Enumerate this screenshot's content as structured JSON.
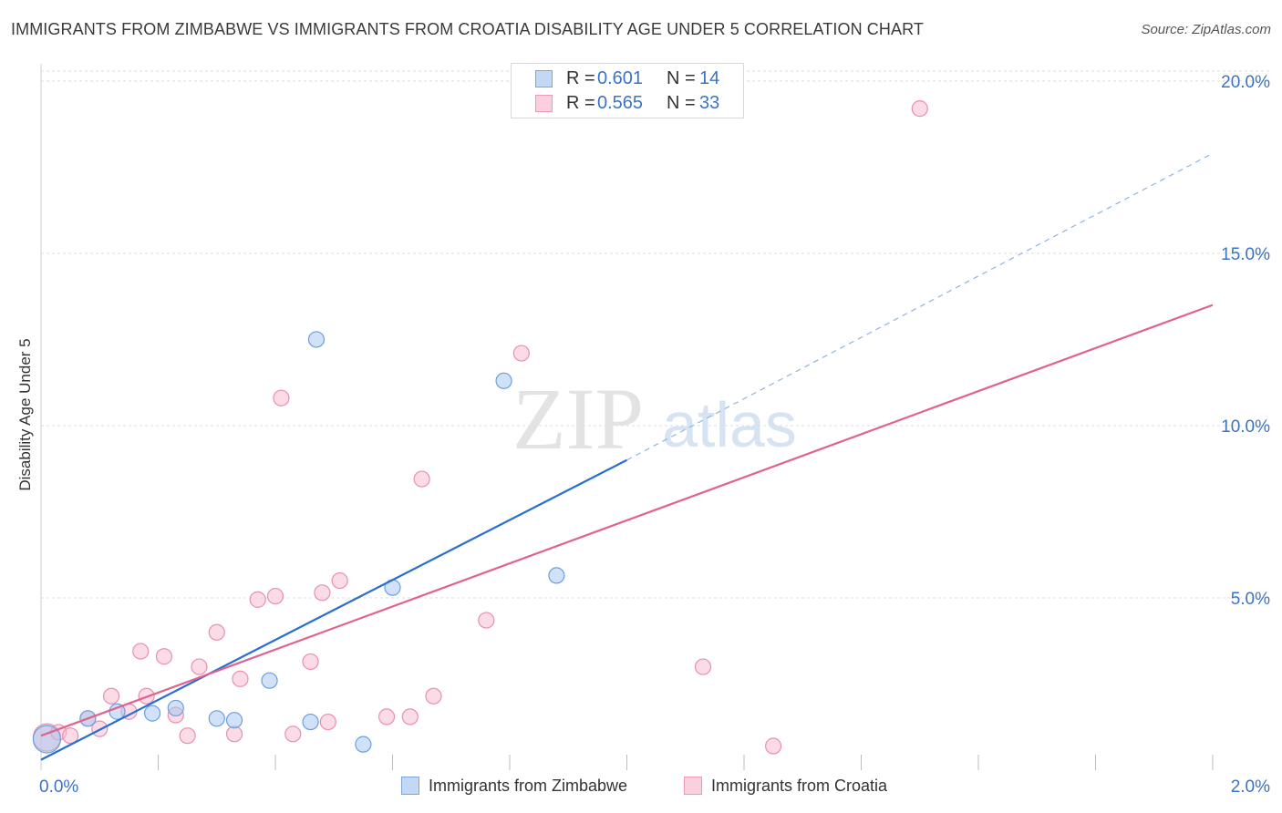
{
  "title": "IMMIGRANTS FROM ZIMBABWE VS IMMIGRANTS FROM CROATIA DISABILITY AGE UNDER 5 CORRELATION CHART",
  "source": "Source: ZipAtlas.com",
  "watermark": {
    "zip": "ZIP",
    "atlas": "atlas"
  },
  "legend": {
    "rows": [
      {
        "r_label": "R =",
        "r_value": "0.601",
        "n_label": "N =",
        "n_value": "14"
      },
      {
        "r_label": "R =",
        "r_value": "0.565",
        "n_label": "N =",
        "n_value": "33"
      }
    ]
  },
  "colors": {
    "zimbabwe_fill": "#a9c8f2",
    "zimbabwe_stroke": "#6c9fdc",
    "zimbabwe_line": "#2a6fcf",
    "croatia_fill": "#f7bdd0",
    "croatia_stroke": "#ea8fae",
    "croatia_line": "#e0628f",
    "tick_label": "#3b73c7",
    "grid": "#dedede"
  },
  "chart_data": {
    "type": "scatter",
    "title": "IMMIGRANTS FROM ZIMBABWE VS IMMIGRANTS FROM CROATIA DISABILITY AGE UNDER 5 CORRELATION CHART",
    "xlabel": "",
    "ylabel": "Disability Age Under 5",
    "xlim": [
      0,
      2.0
    ],
    "ylim": [
      0,
      20.5
    ],
    "x_tick_labels": [
      {
        "value": 0,
        "label": "0.0%"
      },
      {
        "value": 2.0,
        "label": "2.0%"
      }
    ],
    "y_tick_labels": [
      {
        "value": 5,
        "label": "5.0%"
      },
      {
        "value": 10,
        "label": "10.0%"
      },
      {
        "value": 15,
        "label": "15.0%"
      },
      {
        "value": 20,
        "label": "20.0%"
      }
    ],
    "x_minor_ticks": [
      0.2,
      0.4,
      0.6,
      0.8,
      1.0,
      1.2,
      1.4,
      1.6,
      1.8,
      2.0
    ],
    "grid": true,
    "series": [
      {
        "name": "Immigrants from Zimbabwe",
        "color": "#6c9fdc",
        "r": 0.601,
        "n": 14,
        "points": [
          {
            "x": 0.01,
            "y": 0.9,
            "big": true
          },
          {
            "x": 0.08,
            "y": 1.5
          },
          {
            "x": 0.13,
            "y": 1.7
          },
          {
            "x": 0.19,
            "y": 1.65
          },
          {
            "x": 0.23,
            "y": 1.8
          },
          {
            "x": 0.3,
            "y": 1.5
          },
          {
            "x": 0.33,
            "y": 1.45
          },
          {
            "x": 0.39,
            "y": 2.6
          },
          {
            "x": 0.46,
            "y": 1.4
          },
          {
            "x": 0.47,
            "y": 12.5
          },
          {
            "x": 0.55,
            "y": 0.75
          },
          {
            "x": 0.6,
            "y": 5.3
          },
          {
            "x": 0.79,
            "y": 11.3
          },
          {
            "x": 0.88,
            "y": 5.65
          }
        ],
        "trend": {
          "x0": 0.0,
          "y0": 0.3,
          "x1": 1.0,
          "y1": 9.0,
          "dash_to_x": 2.0,
          "dash_to_y": 17.9
        }
      },
      {
        "name": "Immigrants from Croatia",
        "color": "#ea8fae",
        "r": 0.565,
        "n": 33,
        "points": [
          {
            "x": 0.01,
            "y": 0.95,
            "big": true
          },
          {
            "x": 0.03,
            "y": 1.1
          },
          {
            "x": 0.05,
            "y": 1.0
          },
          {
            "x": 0.08,
            "y": 1.5
          },
          {
            "x": 0.1,
            "y": 1.2
          },
          {
            "x": 0.12,
            "y": 2.15
          },
          {
            "x": 0.15,
            "y": 1.7
          },
          {
            "x": 0.17,
            "y": 3.45
          },
          {
            "x": 0.18,
            "y": 2.15
          },
          {
            "x": 0.21,
            "y": 3.3
          },
          {
            "x": 0.23,
            "y": 1.6
          },
          {
            "x": 0.25,
            "y": 1.0
          },
          {
            "x": 0.27,
            "y": 3.0
          },
          {
            "x": 0.3,
            "y": 4.0
          },
          {
            "x": 0.33,
            "y": 1.05
          },
          {
            "x": 0.34,
            "y": 2.65
          },
          {
            "x": 0.37,
            "y": 4.95
          },
          {
            "x": 0.4,
            "y": 5.05
          },
          {
            "x": 0.41,
            "y": 10.8
          },
          {
            "x": 0.43,
            "y": 1.05
          },
          {
            "x": 0.46,
            "y": 3.15
          },
          {
            "x": 0.48,
            "y": 5.15
          },
          {
            "x": 0.49,
            "y": 1.4
          },
          {
            "x": 0.51,
            "y": 5.5
          },
          {
            "x": 0.59,
            "y": 1.55
          },
          {
            "x": 0.63,
            "y": 1.55
          },
          {
            "x": 0.65,
            "y": 8.45
          },
          {
            "x": 0.67,
            "y": 2.15
          },
          {
            "x": 0.76,
            "y": 4.35
          },
          {
            "x": 0.82,
            "y": 12.1
          },
          {
            "x": 1.13,
            "y": 3.0
          },
          {
            "x": 1.25,
            "y": 0.7
          },
          {
            "x": 1.5,
            "y": 19.2
          }
        ],
        "trend": {
          "x0": 0.0,
          "y0": 1.0,
          "x1": 2.0,
          "y1": 13.5
        }
      }
    ]
  },
  "bottom_legend": [
    {
      "label": "Immigrants from Zimbabwe"
    },
    {
      "label": "Immigrants from Croatia"
    }
  ]
}
